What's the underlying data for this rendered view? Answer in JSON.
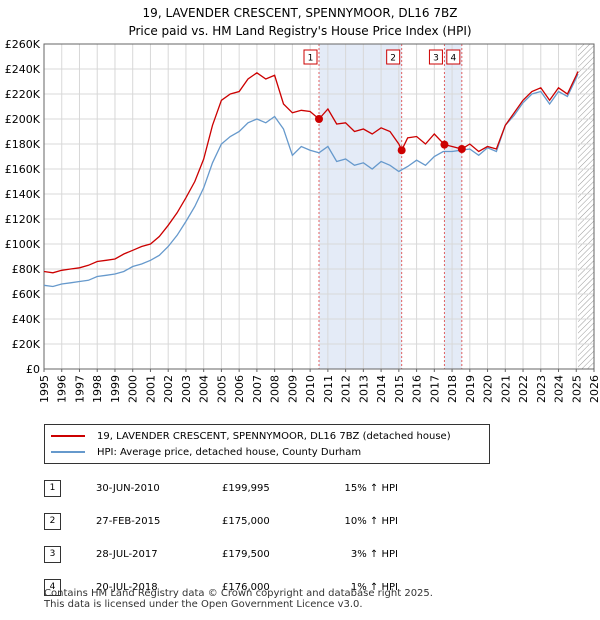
{
  "title": "19, LAVENDER CRESCENT, SPENNYMOOR, DL16 7BZ",
  "subtitle": "Price paid vs. HM Land Registry's House Price Index (HPI)",
  "chart_data": {
    "type": "line",
    "ylim": [
      0,
      260000
    ],
    "xlim": [
      1995,
      2026
    ],
    "y_ticks": [
      0,
      20000,
      40000,
      60000,
      80000,
      100000,
      120000,
      140000,
      160000,
      180000,
      200000,
      220000,
      240000,
      260000
    ],
    "y_tick_labels": [
      "£0",
      "£20K",
      "£40K",
      "£60K",
      "£80K",
      "£100K",
      "£120K",
      "£140K",
      "£160K",
      "£180K",
      "£200K",
      "£220K",
      "£240K",
      "£260K"
    ],
    "x_ticks": [
      1995,
      1996,
      1997,
      1998,
      1999,
      2000,
      2001,
      2002,
      2003,
      2004,
      2005,
      2006,
      2007,
      2008,
      2009,
      2010,
      2011,
      2012,
      2013,
      2014,
      2015,
      2016,
      2017,
      2018,
      2019,
      2020,
      2021,
      2022,
      2023,
      2024,
      2025,
      2026
    ],
    "x_tick_labels": [
      "1995",
      "1996",
      "1997",
      "1998",
      "1999",
      "2000",
      "2001",
      "2002",
      "2003",
      "2004",
      "2005",
      "2006",
      "2007",
      "2008",
      "2009",
      "2010",
      "2011",
      "2012",
      "2013",
      "2014",
      "2015",
      "2016",
      "2017",
      "2018",
      "2019",
      "2020",
      "2021",
      "2022",
      "2023",
      "2024",
      "2025",
      "2026"
    ],
    "grid": true,
    "shaded_periods": [
      [
        2010.5,
        2015.16
      ],
      [
        2017.57,
        2018.55
      ]
    ],
    "future_hatch_from": 2025.1,
    "series": [
      {
        "name": "19, LAVENDER CRESCENT, SPENNYMOOR, DL16 7BZ (detached house)",
        "color": "#cc0000",
        "x": [
          1995,
          1995.5,
          1996,
          1996.5,
          1997,
          1997.5,
          1998,
          1998.5,
          1999,
          1999.5,
          2000,
          2000.5,
          2001,
          2001.5,
          2002,
          2002.5,
          2003,
          2003.5,
          2004,
          2004.5,
          2005,
          2005.5,
          2006,
          2006.5,
          2007,
          2007.5,
          2008,
          2008.5,
          2009,
          2009.5,
          2010,
          2010.5,
          2011,
          2011.5,
          2012,
          2012.5,
          2013,
          2013.5,
          2014,
          2014.5,
          2015,
          2015.16,
          2015.5,
          2016,
          2016.5,
          2017,
          2017.57,
          2018,
          2018.55,
          2019,
          2019.5,
          2020,
          2020.5,
          2021,
          2021.5,
          2022,
          2022.5,
          2023,
          2023.5,
          2024,
          2024.5,
          2025,
          2025.1
        ],
        "y": [
          78000,
          77000,
          79000,
          80000,
          81000,
          83000,
          86000,
          87000,
          88000,
          92000,
          95000,
          98000,
          100000,
          106000,
          115000,
          125000,
          137000,
          150000,
          168000,
          195000,
          215000,
          220000,
          222000,
          232000,
          237000,
          232000,
          235000,
          212000,
          205000,
          207000,
          206000,
          199995,
          208000,
          196000,
          197000,
          190000,
          192000,
          188000,
          193000,
          190000,
          180000,
          175000,
          185000,
          186000,
          180000,
          188000,
          179500,
          178000,
          176000,
          180000,
          174000,
          178000,
          176000,
          195000,
          205000,
          215000,
          222000,
          225000,
          215000,
          225000,
          220000,
          235000,
          238000
        ]
      },
      {
        "name": "HPI: Average price, detached house, County Durham",
        "color": "#6699cc",
        "x": [
          1995,
          1995.5,
          1996,
          1996.5,
          1997,
          1997.5,
          1998,
          1998.5,
          1999,
          1999.5,
          2000,
          2000.5,
          2001,
          2001.5,
          2002,
          2002.5,
          2003,
          2003.5,
          2004,
          2004.5,
          2005,
          2005.5,
          2006,
          2006.5,
          2007,
          2007.5,
          2008,
          2008.5,
          2009,
          2009.5,
          2010,
          2010.5,
          2011,
          2011.5,
          2012,
          2012.5,
          2013,
          2013.5,
          2014,
          2014.5,
          2015,
          2015.5,
          2016,
          2016.5,
          2017,
          2017.5,
          2018,
          2018.5,
          2019,
          2019.5,
          2020,
          2020.5,
          2021,
          2021.5,
          2022,
          2022.5,
          2023,
          2023.5,
          2024,
          2024.5,
          2025,
          2025.1
        ],
        "y": [
          67000,
          66000,
          68000,
          69000,
          70000,
          71000,
          74000,
          75000,
          76000,
          78000,
          82000,
          84000,
          87000,
          91000,
          98000,
          107000,
          118000,
          130000,
          145000,
          165000,
          180000,
          186000,
          190000,
          197000,
          200000,
          197000,
          202000,
          192000,
          171000,
          178000,
          175000,
          173000,
          178000,
          166000,
          168000,
          163000,
          165000,
          160000,
          166000,
          163000,
          158000,
          162000,
          167000,
          163000,
          170000,
          174000,
          174000,
          175000,
          176000,
          171000,
          177000,
          174000,
          195000,
          203000,
          213000,
          220000,
          222000,
          212000,
          222000,
          218000,
          233000,
          236000
        ]
      }
    ],
    "markers": [
      {
        "label": "1",
        "x": 2010.5,
        "y": 199995
      },
      {
        "label": "2",
        "x": 2015.16,
        "y": 175000
      },
      {
        "label": "3",
        "x": 2017.57,
        "y": 179500
      },
      {
        "label": "4",
        "x": 2018.55,
        "y": 176000
      }
    ]
  },
  "legend": {
    "property_label": "19, LAVENDER CRESCENT, SPENNYMOOR, DL16 7BZ (detached house)",
    "hpi_label": "HPI: Average price, detached house, County Durham"
  },
  "sales": [
    {
      "num": "1",
      "date": "30-JUN-2010",
      "price": "£199,995",
      "hpi": "15% ↑ HPI"
    },
    {
      "num": "2",
      "date": "27-FEB-2015",
      "price": "£175,000",
      "hpi": "10% ↑ HPI"
    },
    {
      "num": "3",
      "date": "28-JUL-2017",
      "price": "£179,500",
      "hpi": "3% ↑ HPI"
    },
    {
      "num": "4",
      "date": "20-JUL-2018",
      "price": "£176,000",
      "hpi": "1% ↑ HPI"
    }
  ],
  "footer": {
    "line1": "Contains HM Land Registry data © Crown copyright and database right 2025.",
    "line2": "This data is licensed under the Open Government Licence v3.0."
  }
}
